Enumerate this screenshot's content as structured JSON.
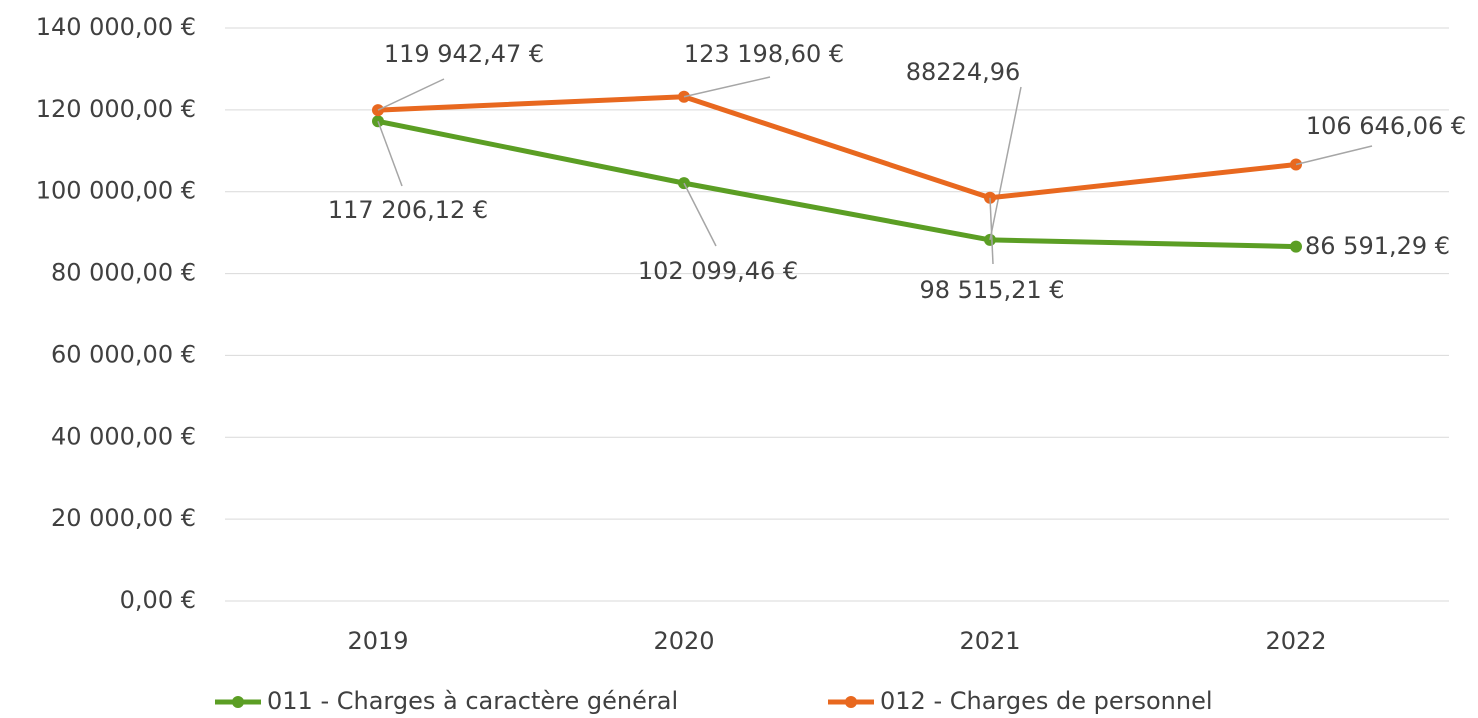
{
  "chart_data": {
    "type": "line",
    "categories": [
      "2019",
      "2020",
      "2021",
      "2022"
    ],
    "series": [
      {
        "name": "011 - Charges à caractère général",
        "color": "#5b9e24",
        "values": [
          117206.12,
          102099.46,
          88224.96,
          86591.29
        ],
        "value_labels": [
          "117 206,12 €",
          "102 099,46 €",
          "88224,96",
          "86 591,29 €"
        ]
      },
      {
        "name": "012 - Charges de personnel",
        "color": "#e8681f",
        "values": [
          119942.47,
          123198.6,
          98515.21,
          106646.06
        ],
        "value_labels": [
          "119 942,47 €",
          "123 198,60 €",
          "98 515,21 €",
          "106 646,06 €"
        ]
      }
    ],
    "ylim": [
      0,
      140000
    ],
    "yticks": [
      {
        "value": 0,
        "label": "0,00 €"
      },
      {
        "value": 20000,
        "label": "20 000,00 €"
      },
      {
        "value": 40000,
        "label": "40 000,00 €"
      },
      {
        "value": 60000,
        "label": "60 000,00 €"
      },
      {
        "value": 80000,
        "label": "80 000,00 €"
      },
      {
        "value": 100000,
        "label": "100 000,00 €"
      },
      {
        "value": 120000,
        "label": "120 000,00 €"
      },
      {
        "value": 140000,
        "label": "140 000,00 €"
      }
    ],
    "grid": true,
    "legend": "bottom"
  }
}
